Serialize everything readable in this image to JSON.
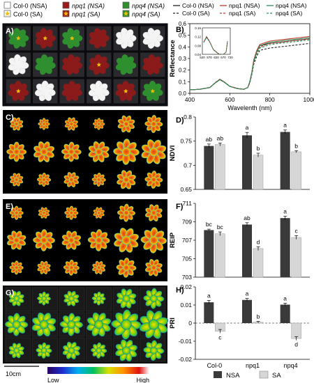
{
  "legend_top": [
    {
      "label": "Col-0 (NSA)",
      "italic": false,
      "color": "#ffffff",
      "star": false
    },
    {
      "label": "Col-0 (SA)",
      "italic": false,
      "color": "#ffffff",
      "star": true
    },
    {
      "label": "npq1 (NSA)",
      "italic": true,
      "color": "#9b1b1b",
      "star": false
    },
    {
      "label": "npq1 (SA)",
      "italic": true,
      "color": "#9b1b1b",
      "star": true
    },
    {
      "label": "npq4 (NSA)",
      "italic": true,
      "color": "#2f8f2f",
      "star": false
    },
    {
      "label": "npq4 (SA)",
      "italic": true,
      "color": "#2f8f2f",
      "star": true
    }
  ],
  "panel_labels": {
    "a": "A)",
    "b": "B)",
    "c": "C)",
    "d": "D)",
    "e": "E)",
    "f": "F)",
    "g": "G)",
    "h": "H)"
  },
  "scale_bar_label": "10cm",
  "colorbar": {
    "low": "Low",
    "high": "High"
  },
  "bar_legend": {
    "nsa": "NSA",
    "sa": "SA"
  },
  "colors": {
    "nsa": "#3a3a3a",
    "sa": "#d6d6d6",
    "npq1": "#c0392b",
    "npq4": "#2e8b57",
    "col0": "#222222"
  },
  "chart_data": [
    {
      "type": "line",
      "panel": "B",
      "ylabel": "Reflectance",
      "xlabel": "Wavelenth (nm)",
      "xlim": [
        400,
        1000
      ],
      "ylim": [
        0,
        0.6
      ],
      "x_ticks": [
        "400",
        "600",
        "800",
        "1000"
      ],
      "y_ticks": [
        "0.0",
        "0.1",
        "0.2",
        "0.3",
        "0.4",
        "0.5",
        "0.6"
      ],
      "legend": [
        "Col-0 (NSA)",
        "npq1 (NSA)",
        "npq4 (NSA)",
        "Col-0 (SA)",
        "npq1 (SA)",
        "npq4 (SA)"
      ],
      "x": [
        400,
        450,
        500,
        530,
        550,
        570,
        600,
        640,
        670,
        690,
        700,
        710,
        720,
        735,
        750,
        800,
        850,
        900,
        950,
        1000
      ],
      "series": [
        {
          "name": "Col-0 (NSA)",
          "color": "#222222",
          "dash": false,
          "values": [
            0.03,
            0.035,
            0.05,
            0.095,
            0.12,
            0.1,
            0.06,
            0.04,
            0.035,
            0.05,
            0.1,
            0.18,
            0.28,
            0.36,
            0.41,
            0.43,
            0.44,
            0.45,
            0.46,
            0.47
          ]
        },
        {
          "name": "npq1 (NSA)",
          "color": "#c0392b",
          "dash": false,
          "values": [
            0.03,
            0.035,
            0.05,
            0.095,
            0.118,
            0.1,
            0.06,
            0.04,
            0.035,
            0.05,
            0.1,
            0.18,
            0.29,
            0.37,
            0.42,
            0.45,
            0.46,
            0.47,
            0.48,
            0.49
          ]
        },
        {
          "name": "npq4 (NSA)",
          "color": "#2e8b57",
          "dash": false,
          "values": [
            0.03,
            0.035,
            0.05,
            0.093,
            0.116,
            0.098,
            0.06,
            0.04,
            0.035,
            0.05,
            0.1,
            0.18,
            0.28,
            0.36,
            0.41,
            0.44,
            0.45,
            0.46,
            0.47,
            0.48
          ]
        },
        {
          "name": "Col-0 (SA)",
          "color": "#222222",
          "dash": true,
          "values": [
            0.03,
            0.035,
            0.05,
            0.095,
            0.12,
            0.1,
            0.06,
            0.04,
            0.035,
            0.05,
            0.09,
            0.16,
            0.25,
            0.32,
            0.37,
            0.39,
            0.4,
            0.41,
            0.42,
            0.43
          ]
        },
        {
          "name": "npq1 (SA)",
          "color": "#c0392b",
          "dash": true,
          "values": [
            0.03,
            0.035,
            0.05,
            0.097,
            0.122,
            0.102,
            0.062,
            0.042,
            0.036,
            0.05,
            0.1,
            0.17,
            0.27,
            0.35,
            0.4,
            0.43,
            0.44,
            0.45,
            0.46,
            0.47
          ]
        },
        {
          "name": "npq4 (SA)",
          "color": "#2e8b57",
          "dash": true,
          "values": [
            0.03,
            0.035,
            0.05,
            0.094,
            0.118,
            0.099,
            0.06,
            0.04,
            0.035,
            0.05,
            0.095,
            0.17,
            0.26,
            0.34,
            0.39,
            0.42,
            0.43,
            0.44,
            0.45,
            0.46
          ]
        }
      ],
      "inset": {
        "xlim": [
          520,
          720
        ],
        "ylim": [
          0.04,
          0.16
        ],
        "x_ticks": [
          "520",
          "570",
          "620",
          "670",
          "720"
        ],
        "y_ticks": [
          "0.04",
          "0.08",
          "0.12",
          "0.16"
        ]
      }
    },
    {
      "type": "bar",
      "panel": "D",
      "ylabel": "NDVI",
      "ylim": [
        0.65,
        0.8
      ],
      "y_ticks": [
        "0.65",
        "0.7",
        "0.75",
        "0.8"
      ],
      "categories": [
        "Col-0",
        "npq1",
        "npq4"
      ],
      "series": [
        {
          "name": "NSA",
          "values": [
            0.74,
            0.762,
            0.769
          ],
          "errors": [
            0.004,
            0.006,
            0.004
          ],
          "letters": [
            "ab",
            "a",
            "a"
          ]
        },
        {
          "name": "SA",
          "values": [
            0.743,
            0.721,
            0.728
          ],
          "errors": [
            0.003,
            0.004,
            0.002
          ],
          "letters": [
            "ab",
            "b",
            "b"
          ]
        }
      ]
    },
    {
      "type": "bar",
      "panel": "F",
      "ylabel": "REIP",
      "ylim": [
        703,
        711
      ],
      "y_ticks": [
        "703",
        "705",
        "707",
        "709",
        "711"
      ],
      "categories": [
        "Col-0",
        "npq1",
        "npq4"
      ],
      "series": [
        {
          "name": "NSA",
          "values": [
            708.1,
            708.7,
            709.4
          ],
          "errors": [
            0.1,
            0.2,
            0.2
          ],
          "letters": [
            "bc",
            "ab",
            "a"
          ]
        },
        {
          "name": "SA",
          "values": [
            707.7,
            706.1,
            707.3
          ],
          "errors": [
            0.2,
            0.2,
            0.2
          ],
          "letters": [
            "bc",
            "d",
            "c"
          ]
        }
      ]
    },
    {
      "type": "bar",
      "panel": "H",
      "ylabel": "PRI",
      "ylim": [
        -0.02,
        0.02
      ],
      "y_ticks": [
        "-0.02",
        "-0.01",
        "0",
        "0.01",
        "0.02"
      ],
      "categories": [
        "Col-0",
        "npq1",
        "npq4"
      ],
      "series": [
        {
          "name": "NSA",
          "values": [
            0.0115,
            0.0128,
            0.0102
          ],
          "errors": [
            0.001,
            0.0008,
            0.0008
          ],
          "letters": [
            "a",
            "a",
            "a"
          ]
        },
        {
          "name": "SA",
          "values": [
            -0.0045,
            0.0005,
            -0.0085
          ],
          "errors": [
            0.001,
            0.0005,
            0.001
          ],
          "letters": [
            "c",
            "b",
            "d"
          ]
        }
      ]
    }
  ]
}
